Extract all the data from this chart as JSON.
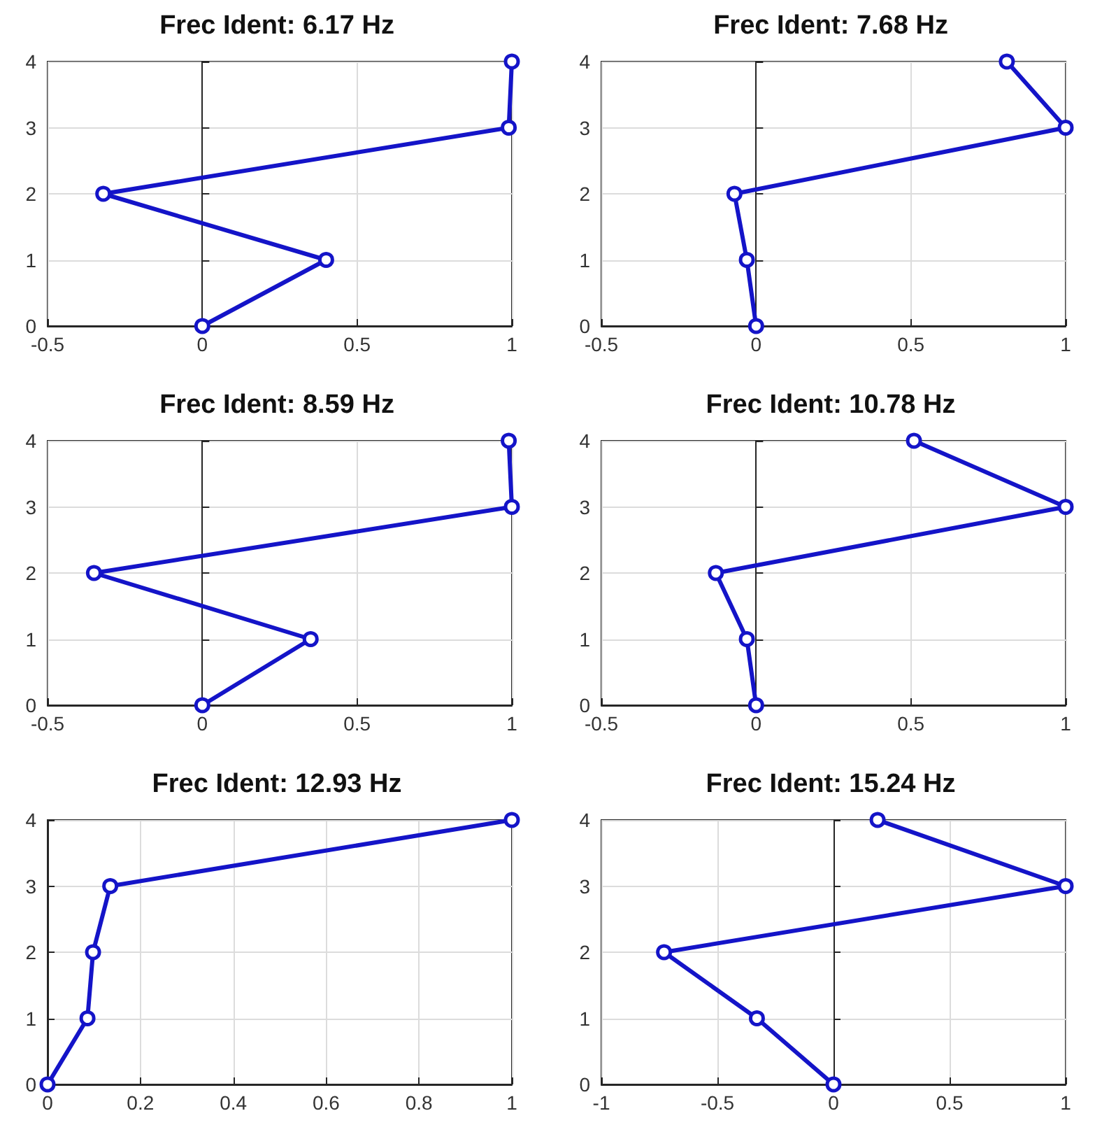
{
  "chart_data": [
    {
      "type": "line",
      "title": "Frec Ident: 6.17 Hz",
      "x": [
        0,
        0.4,
        -0.32,
        0.99,
        1
      ],
      "values": [
        0,
        1,
        2,
        3,
        4
      ],
      "color": "#1414c8",
      "xlim": [
        -0.5,
        1
      ],
      "xticks": [
        -0.5,
        0,
        0.5,
        1
      ],
      "ylim": [
        0,
        4
      ],
      "yticks": [
        0,
        1,
        2,
        3,
        4
      ],
      "grid": true,
      "marker": "circle"
    },
    {
      "type": "line",
      "title": "Frec Ident: 7.68 Hz",
      "x": [
        0,
        -0.03,
        -0.07,
        1,
        0.81
      ],
      "values": [
        0,
        1,
        2,
        3,
        4
      ],
      "color": "#1414c8",
      "xlim": [
        -0.5,
        1
      ],
      "xticks": [
        -0.5,
        0,
        0.5,
        1
      ],
      "ylim": [
        0,
        4
      ],
      "yticks": [
        0,
        1,
        2,
        3,
        4
      ],
      "grid": true,
      "marker": "circle"
    },
    {
      "type": "line",
      "title": "Frec Ident: 8.59 Hz",
      "x": [
        0,
        0.35,
        -0.35,
        1,
        0.99
      ],
      "values": [
        0,
        1,
        2,
        3,
        4
      ],
      "color": "#1414c8",
      "xlim": [
        -0.5,
        1
      ],
      "xticks": [
        -0.5,
        0,
        0.5,
        1
      ],
      "ylim": [
        0,
        4
      ],
      "yticks": [
        0,
        1,
        2,
        3,
        4
      ],
      "grid": true,
      "marker": "circle"
    },
    {
      "type": "line",
      "title": "Frec Ident: 10.78 Hz",
      "x": [
        0,
        -0.03,
        -0.13,
        1,
        0.51
      ],
      "values": [
        0,
        1,
        2,
        3,
        4
      ],
      "color": "#1414c8",
      "xlim": [
        -0.5,
        1
      ],
      "xticks": [
        -0.5,
        0,
        0.5,
        1
      ],
      "ylim": [
        0,
        4
      ],
      "yticks": [
        0,
        1,
        2,
        3,
        4
      ],
      "grid": true,
      "marker": "circle"
    },
    {
      "type": "line",
      "title": "Frec Ident: 12.93 Hz",
      "x": [
        0,
        0.086,
        0.098,
        0.135,
        1
      ],
      "values": [
        0,
        1,
        2,
        3,
        4
      ],
      "color": "#1414c8",
      "xlim": [
        0,
        1
      ],
      "xticks": [
        0,
        0.2,
        0.4,
        0.6,
        0.8,
        1
      ],
      "ylim": [
        0,
        4
      ],
      "yticks": [
        0,
        1,
        2,
        3,
        4
      ],
      "grid": true,
      "marker": "circle"
    },
    {
      "type": "line",
      "title": "Frec Ident: 15.24 Hz",
      "x": [
        0,
        -0.33,
        -0.73,
        1,
        0.19
      ],
      "values": [
        0,
        1,
        2,
        3,
        4
      ],
      "color": "#1414c8",
      "xlim": [
        -1,
        1
      ],
      "xticks": [
        -1,
        -0.5,
        0,
        0.5,
        1
      ],
      "ylim": [
        0,
        4
      ],
      "yticks": [
        0,
        1,
        2,
        3,
        4
      ],
      "grid": true,
      "marker": "circle"
    }
  ]
}
